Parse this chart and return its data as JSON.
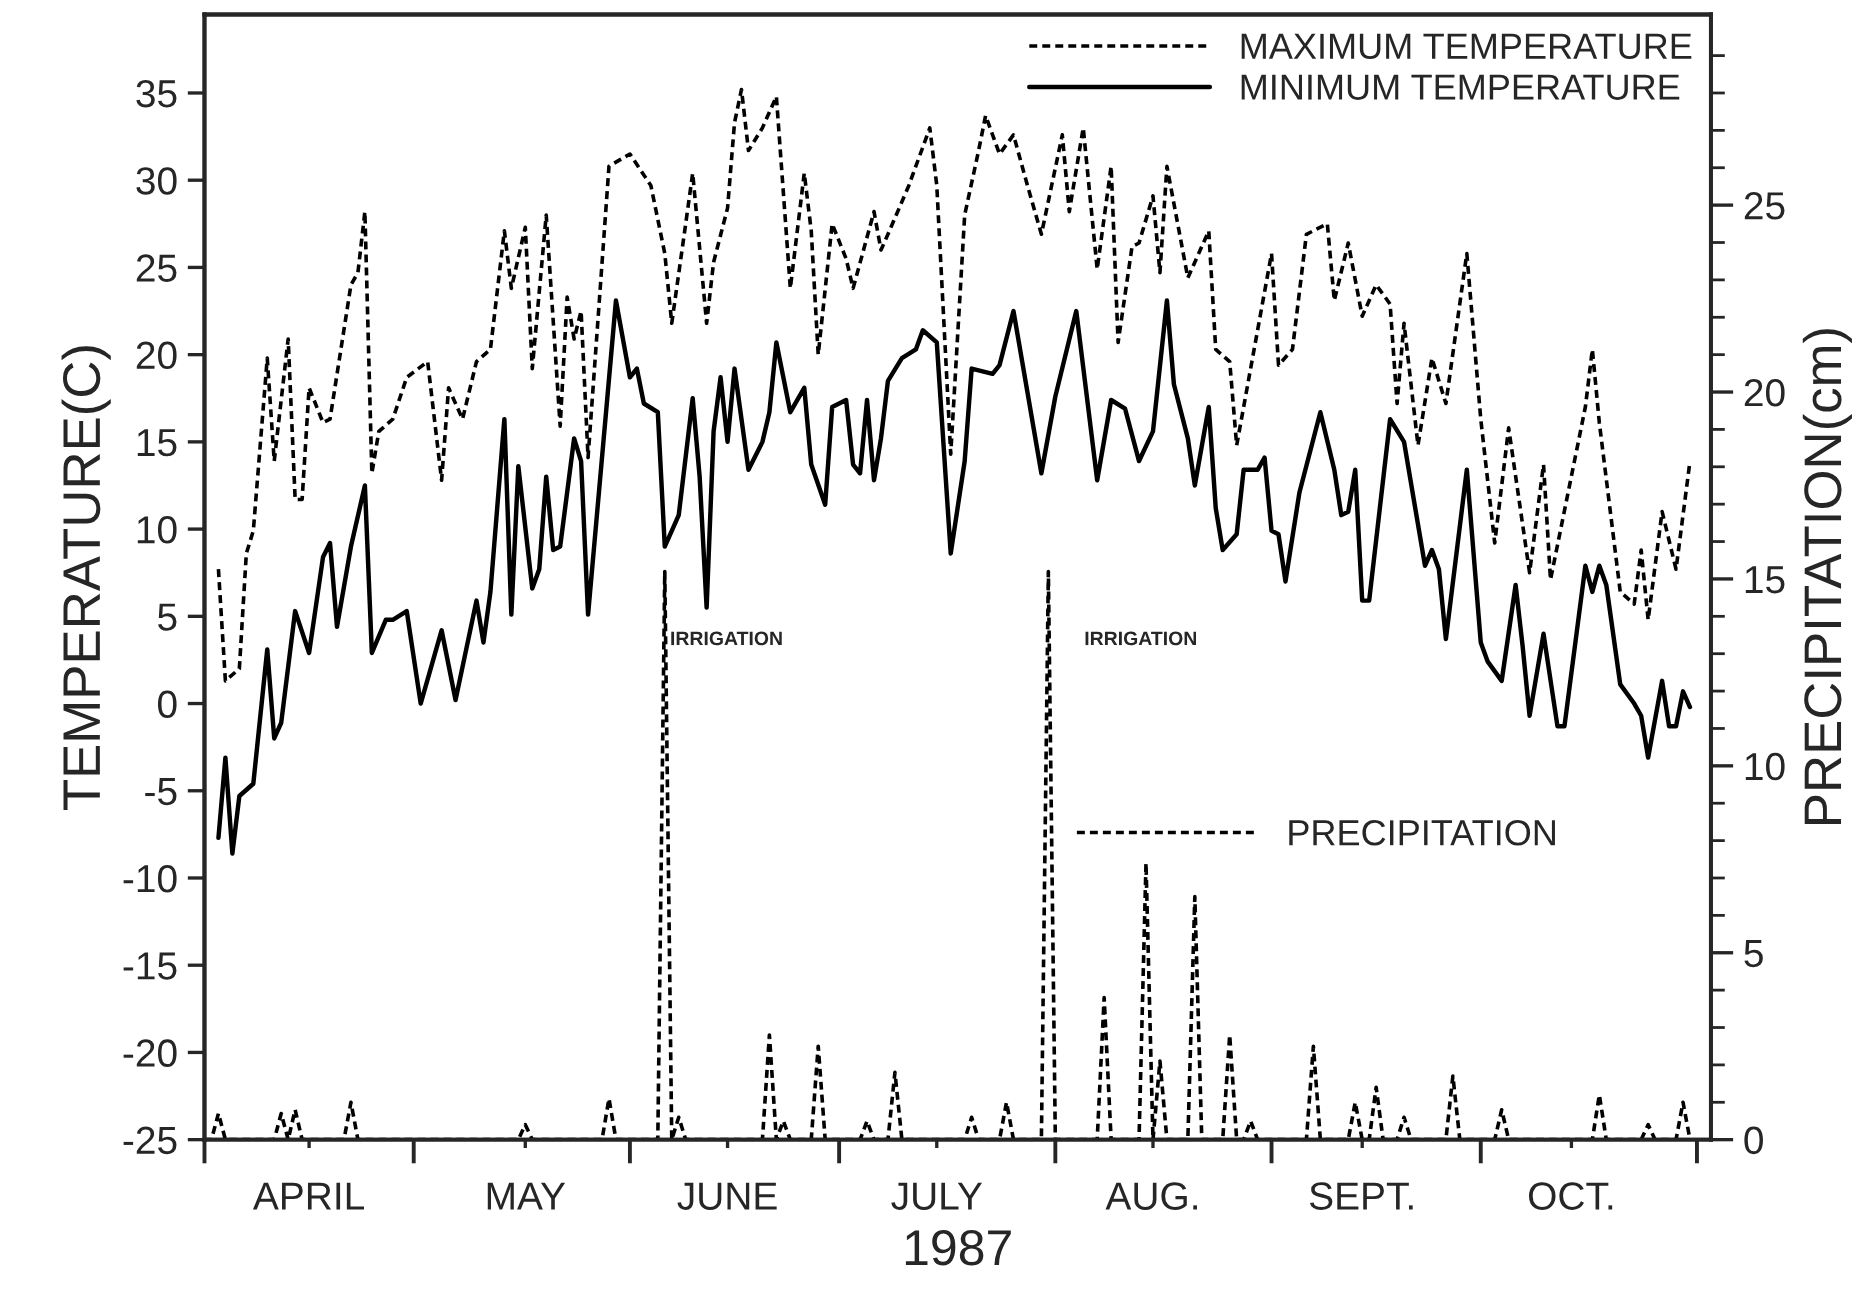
{
  "chart_data": {
    "type": "line",
    "xlabel": "1987",
    "ylabel": "TEMPERATURE(C)",
    "y2label": "PRECIPITATION(cm)",
    "xlim": [
      "1987-04-01",
      "1987-11-03"
    ],
    "xticks": [
      {
        "value": "1987-04-01",
        "label": null
      },
      {
        "value": "1987-04-16",
        "label": "APRIL"
      },
      {
        "value": "1987-05-01",
        "label": null
      },
      {
        "value": "1987-05-17",
        "label": "MAY"
      },
      {
        "value": "1987-06-01",
        "label": null
      },
      {
        "value": "1987-06-15",
        "label": "JUNE"
      },
      {
        "value": "1987-07-01",
        "label": null
      },
      {
        "value": "1987-07-15",
        "label": "JULY"
      },
      {
        "value": "1987-08-01",
        "label": null
      },
      {
        "value": "1987-08-15",
        "label": "AUG."
      },
      {
        "value": "1987-09-01",
        "label": null
      },
      {
        "value": "1987-09-14",
        "label": "SEPT."
      },
      {
        "value": "1987-10-01",
        "label": null
      },
      {
        "value": "1987-10-14",
        "label": "OCT."
      },
      {
        "value": "1987-11-01",
        "label": null
      }
    ],
    "ylim": [
      -25,
      39.5
    ],
    "yticks": [
      -25,
      -20,
      -15,
      -10,
      -5,
      0,
      5,
      10,
      15,
      20,
      25,
      30,
      35
    ],
    "y2lim": [
      0,
      30.1
    ],
    "y2ticks": [
      0,
      {
        "value": 1,
        "label": null
      },
      {
        "value": 2,
        "label": null
      },
      {
        "value": 3,
        "label": null
      },
      {
        "value": 4,
        "label": null
      },
      5,
      {
        "value": 6,
        "label": null
      },
      {
        "value": 7,
        "label": null
      },
      {
        "value": 8,
        "label": null
      },
      {
        "value": 9,
        "label": null
      },
      10,
      {
        "value": 11,
        "label": null
      },
      {
        "value": 12,
        "label": null
      },
      {
        "value": 13,
        "label": null
      },
      {
        "value": 14,
        "label": null
      },
      15,
      {
        "value": 16,
        "label": null
      },
      {
        "value": 17,
        "label": null
      },
      {
        "value": 18,
        "label": null
      },
      {
        "value": 19,
        "label": null
      },
      20,
      {
        "value": 21,
        "label": null
      },
      {
        "value": 22,
        "label": null
      },
      {
        "value": 23,
        "label": null
      },
      {
        "value": 24,
        "label": null
      },
      25,
      {
        "value": 26,
        "label": null
      },
      {
        "value": 27,
        "label": null
      },
      {
        "value": 28,
        "label": null
      },
      {
        "value": 29,
        "label": null
      }
    ],
    "legend": "top right",
    "marker": "none",
    "annotations": [
      "IRRIGATION",
      "IRRIGATION"
    ],
    "series": [
      {
        "name": "MAXIMUM TEMPERATURE",
        "color": "#000000",
        "line_style": "dashed",
        "x": [
          "1987-04-03",
          "1987-04-04",
          "1987-04-06",
          "1987-04-07",
          "1987-04-08",
          "1987-04-10",
          "1987-04-11",
          "1987-04-13",
          "1987-04-14",
          "1987-04-15",
          "1987-04-16",
          "1987-04-18",
          "1987-04-19",
          "1987-04-22",
          "1987-04-23",
          "1987-04-24",
          "1987-04-25",
          "1987-04-26",
          "1987-04-28",
          "1987-04-30",
          "1987-05-03",
          "1987-05-05",
          "1987-05-06",
          "1987-05-08",
          "1987-05-10",
          "1987-05-12",
          "1987-05-14",
          "1987-05-15",
          "1987-05-17",
          "1987-05-18",
          "1987-05-20",
          "1987-05-22",
          "1987-05-23",
          "1987-05-24",
          "1987-05-25",
          "1987-05-26",
          "1987-05-29",
          "1987-06-01",
          "1987-06-04",
          "1987-06-06",
          "1987-06-07",
          "1987-06-09",
          "1987-06-10",
          "1987-06-12",
          "1987-06-13",
          "1987-06-15",
          "1987-06-16",
          "1987-06-17",
          "1987-06-18",
          "1987-06-20",
          "1987-06-22",
          "1987-06-24",
          "1987-06-26",
          "1987-06-27",
          "1987-06-28",
          "1987-06-30",
          "1987-07-02",
          "1987-07-03",
          "1987-07-06",
          "1987-07-07",
          "1987-07-08",
          "1987-07-11",
          "1987-07-14",
          "1987-07-15",
          "1987-07-17",
          "1987-07-19",
          "1987-07-21",
          "1987-07-22",
          "1987-07-24",
          "1987-07-26",
          "1987-07-28",
          "1987-07-30",
          "1987-08-02",
          "1987-08-03",
          "1987-08-05",
          "1987-08-07",
          "1987-08-09",
          "1987-08-10",
          "1987-08-12",
          "1987-08-13",
          "1987-08-15",
          "1987-08-16",
          "1987-08-17",
          "1987-08-20",
          "1987-08-23",
          "1987-08-24",
          "1987-08-26",
          "1987-08-27",
          "1987-08-30",
          "1987-09-01",
          "1987-09-02",
          "1987-09-04",
          "1987-09-06",
          "1987-09-09",
          "1987-09-10",
          "1987-09-12",
          "1987-09-14",
          "1987-09-16",
          "1987-09-18",
          "1987-09-19",
          "1987-09-20",
          "1987-09-22",
          "1987-09-24",
          "1987-09-26",
          "1987-09-29",
          "1987-10-01",
          "1987-10-03",
          "1987-10-05",
          "1987-10-08",
          "1987-10-10",
          "1987-10-11",
          "1987-10-16",
          "1987-10-17",
          "1987-10-18",
          "1987-10-21",
          "1987-10-23",
          "1987-10-24",
          "1987-10-25",
          "1987-10-27",
          "1987-10-29",
          "1987-10-31"
        ],
        "values": [
          7.7,
          1.3,
          2.0,
          8.6,
          9.9,
          19.8,
          13.9,
          20.9,
          11.7,
          11.7,
          18.1,
          16.1,
          16.3,
          24.0,
          24.7,
          28.2,
          13.2,
          15.6,
          16.3,
          18.7,
          19.6,
          12.8,
          18.1,
          16.3,
          19.6,
          20.3,
          27.1,
          23.8,
          27.3,
          19.2,
          28.0,
          15.9,
          23.3,
          20.9,
          22.5,
          14.1,
          30.8,
          31.5,
          29.7,
          25.8,
          21.8,
          27.5,
          30.4,
          21.8,
          25.3,
          28.4,
          33.3,
          35.2,
          31.7,
          33.0,
          34.8,
          23.8,
          30.4,
          27.1,
          20.0,
          27.5,
          25.5,
          23.8,
          28.2,
          26.0,
          26.9,
          29.7,
          33.0,
          29.7,
          14.3,
          28.0,
          31.7,
          33.7,
          31.5,
          32.6,
          29.7,
          26.9,
          32.6,
          28.2,
          33.0,
          24.9,
          30.8,
          20.7,
          26.2,
          26.4,
          29.1,
          24.7,
          30.8,
          24.4,
          27.1,
          20.3,
          19.6,
          14.8,
          21.4,
          25.8,
          19.4,
          20.3,
          26.9,
          27.5,
          23.1,
          26.4,
          22.2,
          24.0,
          22.9,
          17.2,
          21.8,
          14.8,
          19.8,
          17.2,
          25.8,
          16.3,
          9.2,
          15.8,
          7.5,
          13.7,
          7.1,
          17.0,
          20.3,
          16.1,
          6.4,
          5.7,
          8.8,
          4.8,
          11.0,
          7.7,
          13.9
        ]
      },
      {
        "name": "MINIMUM TEMPERATURE",
        "color": "#000000",
        "line_style": "solid",
        "x": [
          "1987-04-03",
          "1987-04-04",
          "1987-04-05",
          "1987-04-06",
          "1987-04-08",
          "1987-04-10",
          "1987-04-11",
          "1987-04-12",
          "1987-04-14",
          "1987-04-16",
          "1987-04-18",
          "1987-04-19",
          "1987-04-20",
          "1987-04-22",
          "1987-04-24",
          "1987-04-25",
          "1987-04-27",
          "1987-04-28",
          "1987-04-30",
          "1987-05-02",
          "1987-05-05",
          "1987-05-07",
          "1987-05-10",
          "1987-05-11",
          "1987-05-12",
          "1987-05-14",
          "1987-05-15",
          "1987-05-16",
          "1987-05-18",
          "1987-05-19",
          "1987-05-20",
          "1987-05-21",
          "1987-05-22",
          "1987-05-24",
          "1987-05-25",
          "1987-05-26",
          "1987-05-30",
          "1987-06-01",
          "1987-06-02",
          "1987-06-03",
          "1987-06-05",
          "1987-06-06",
          "1987-06-08",
          "1987-06-10",
          "1987-06-11",
          "1987-06-12",
          "1987-06-13",
          "1987-06-14",
          "1987-06-15",
          "1987-06-16",
          "1987-06-18",
          "1987-06-20",
          "1987-06-21",
          "1987-06-22",
          "1987-06-24",
          "1987-06-26",
          "1987-06-27",
          "1987-06-29",
          "1987-06-30",
          "1987-07-02",
          "1987-07-03",
          "1987-07-04",
          "1987-07-05",
          "1987-07-06",
          "1987-07-07",
          "1987-07-08",
          "1987-07-10",
          "1987-07-12",
          "1987-07-13",
          "1987-07-15",
          "1987-07-17",
          "1987-07-19",
          "1987-07-20",
          "1987-07-23",
          "1987-07-24",
          "1987-07-26",
          "1987-07-30",
          "1987-08-01",
          "1987-08-04",
          "1987-08-07",
          "1987-08-09",
          "1987-08-11",
          "1987-08-13",
          "1987-08-15",
          "1987-08-17",
          "1987-08-18",
          "1987-08-20",
          "1987-08-21",
          "1987-08-23",
          "1987-08-24",
          "1987-08-25",
          "1987-08-27",
          "1987-08-28",
          "1987-08-30",
          "1987-08-31",
          "1987-09-01",
          "1987-09-02",
          "1987-09-03",
          "1987-09-05",
          "1987-09-08",
          "1987-09-10",
          "1987-09-11",
          "1987-09-12",
          "1987-09-13",
          "1987-09-14",
          "1987-09-15",
          "1987-09-18",
          "1987-09-20",
          "1987-09-23",
          "1987-09-24",
          "1987-09-25",
          "1987-09-26",
          "1987-09-29",
          "1987-10-01",
          "1987-10-02",
          "1987-10-04",
          "1987-10-06",
          "1987-10-07",
          "1987-10-08",
          "1987-10-10",
          "1987-10-12",
          "1987-10-13",
          "1987-10-16",
          "1987-10-17",
          "1987-10-18",
          "1987-10-19",
          "1987-10-21",
          "1987-10-23",
          "1987-10-24",
          "1987-10-25",
          "1987-10-27",
          "1987-10-28",
          "1987-10-29",
          "1987-10-30",
          "1987-10-31"
        ],
        "values": [
          -7.7,
          -3.1,
          -8.6,
          -5.3,
          -4.6,
          3.1,
          -2.0,
          -1.1,
          5.3,
          2.9,
          8.4,
          9.2,
          4.4,
          9.0,
          12.5,
          2.9,
          4.8,
          4.8,
          5.3,
          0.0,
          4.2,
          0.2,
          5.9,
          3.5,
          6.4,
          16.3,
          5.1,
          13.6,
          6.6,
          7.7,
          13.0,
          8.8,
          9.0,
          15.2,
          13.9,
          5.1,
          23.1,
          18.7,
          19.2,
          17.2,
          16.7,
          9.0,
          10.8,
          17.5,
          13.0,
          5.5,
          15.6,
          18.7,
          15.0,
          19.2,
          13.4,
          15.0,
          16.7,
          20.7,
          16.7,
          18.1,
          13.7,
          11.4,
          17.0,
          17.4,
          13.7,
          13.2,
          17.4,
          12.8,
          15.2,
          18.5,
          19.8,
          20.3,
          21.4,
          20.7,
          8.6,
          13.9,
          19.2,
          18.9,
          19.4,
          22.5,
          13.2,
          17.6,
          22.5,
          12.8,
          17.4,
          16.9,
          13.9,
          15.6,
          23.1,
          18.3,
          15.2,
          12.5,
          17.0,
          11.2,
          8.8,
          9.7,
          13.4,
          13.4,
          14.1,
          9.9,
          9.7,
          7.0,
          12.1,
          16.7,
          13.4,
          10.8,
          11.0,
          13.4,
          5.9,
          5.9,
          16.3,
          15.0,
          7.9,
          8.8,
          7.7,
          3.7,
          13.4,
          3.5,
          2.4,
          1.3,
          6.8,
          3.3,
          -0.7,
          4.0,
          -1.3,
          -1.3,
          7.9,
          6.4,
          7.9,
          6.8,
          1.1,
          0.0,
          -0.7,
          -3.1,
          1.3,
          -1.3,
          -1.3,
          0.7,
          -0.2
        ]
      },
      {
        "name": "PRECIPITATION",
        "color": "#000000",
        "line_style": "dashed",
        "axis": "y2",
        "x": [
          "1987-04-01",
          "1987-04-02",
          "1987-04-03",
          "1987-04-04",
          "1987-04-11",
          "1987-04-12",
          "1987-04-13",
          "1987-04-14",
          "1987-04-15",
          "1987-04-21",
          "1987-04-22",
          "1987-04-23",
          "1987-05-16",
          "1987-05-17",
          "1987-05-18",
          "1987-05-28",
          "1987-05-29",
          "1987-05-30",
          "1987-06-05",
          "1987-06-06",
          "1987-06-07",
          "1987-06-08",
          "1987-06-09",
          "1987-06-20",
          "1987-06-21",
          "1987-06-22",
          "1987-06-23",
          "1987-06-24",
          "1987-06-27",
          "1987-06-28",
          "1987-06-29",
          "1987-07-04",
          "1987-07-05",
          "1987-07-06",
          "1987-07-08",
          "1987-07-09",
          "1987-07-10",
          "1987-07-19",
          "1987-07-20",
          "1987-07-21",
          "1987-07-24",
          "1987-07-25",
          "1987-07-26",
          "1987-07-30",
          "1987-07-31",
          "1987-08-01",
          "1987-08-07",
          "1987-08-08",
          "1987-08-09",
          "1987-08-13",
          "1987-08-14",
          "1987-08-15",
          "1987-08-16",
          "1987-08-17",
          "1987-08-20",
          "1987-08-21",
          "1987-08-22",
          "1987-08-25",
          "1987-08-26",
          "1987-08-27",
          "1987-08-28",
          "1987-08-29",
          "1987-08-30",
          "1987-09-06",
          "1987-09-07",
          "1987-09-08",
          "1987-09-12",
          "1987-09-13",
          "1987-09-14",
          "1987-09-15",
          "1987-09-16",
          "1987-09-17",
          "1987-09-19",
          "1987-09-20",
          "1987-09-21",
          "1987-09-26",
          "1987-09-27",
          "1987-09-28",
          "1987-10-03",
          "1987-10-04",
          "1987-10-05",
          "1987-10-17",
          "1987-10-18",
          "1987-10-19",
          "1987-10-24",
          "1987-10-25",
          "1987-10-26",
          "1987-10-29",
          "1987-10-30",
          "1987-10-31"
        ],
        "values": [
          0,
          0,
          0.7,
          0,
          0,
          0.7,
          0,
          0.8,
          0,
          0,
          1.0,
          0,
          0,
          0.4,
          0,
          0,
          1.1,
          0,
          0,
          15.2,
          0,
          0.6,
          0,
          0,
          2.8,
          0,
          0.5,
          0,
          0,
          2.5,
          0,
          0,
          0.5,
          0,
          0,
          1.8,
          0,
          0,
          0.6,
          0,
          0,
          1.0,
          0,
          0,
          15.2,
          0,
          0,
          3.8,
          0,
          0,
          7.4,
          0,
          2.1,
          0,
          0,
          6.5,
          0,
          0,
          2.8,
          0,
          0,
          0.5,
          0,
          0,
          2.5,
          0,
          0,
          1.0,
          0,
          0,
          1.4,
          0,
          0,
          0.6,
          0,
          0,
          1.7,
          0,
          0,
          0.8,
          0,
          0,
          1.2,
          0,
          0,
          0.4,
          0,
          0,
          1.0,
          0
        ]
      }
    ]
  }
}
